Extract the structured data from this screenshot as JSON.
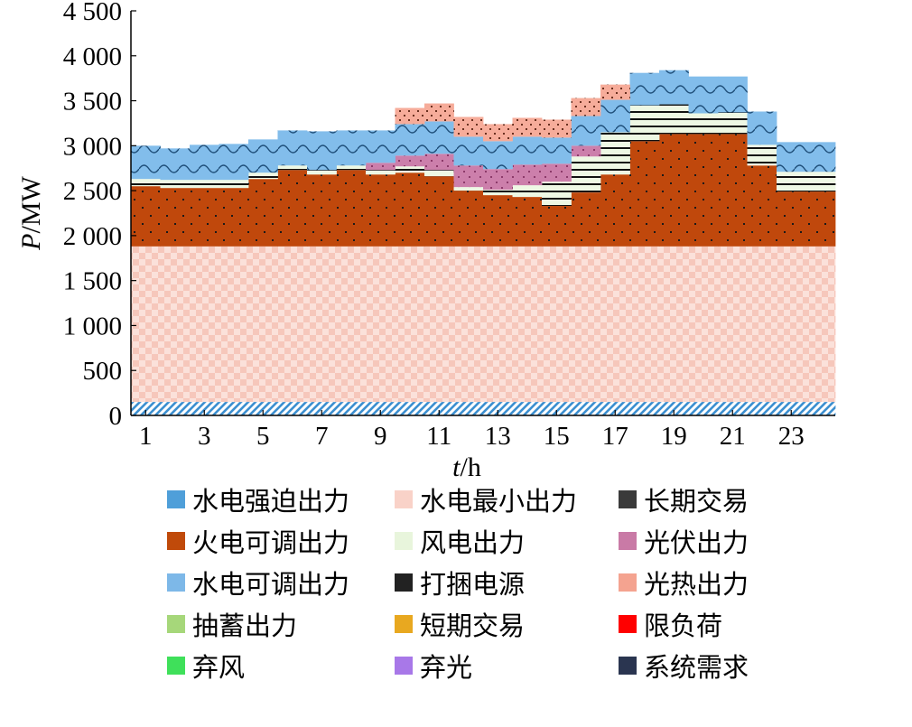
{
  "chart_data": {
    "type": "area",
    "stacked": true,
    "step": true,
    "xlabel": "t/h",
    "ylabel": "P/MW",
    "ylim": [
      0,
      4500
    ],
    "yticks": [
      0,
      500,
      1000,
      1500,
      2000,
      2500,
      3000,
      3500,
      4000,
      4500
    ],
    "ytick_labels": [
      "0",
      "500",
      "1 000",
      "1 500",
      "2 000",
      "2 500",
      "3 000",
      "3 500",
      "4 000",
      "4 500"
    ],
    "xlim": [
      0,
      24
    ],
    "xtick_values": [
      1,
      3,
      5,
      7,
      9,
      11,
      13,
      15,
      17,
      19,
      21,
      23
    ],
    "xtick_labels": [
      "1",
      "3",
      "5",
      "7",
      "9",
      "11",
      "13",
      "15",
      "17",
      "19",
      "21",
      "23"
    ],
    "hours": [
      1,
      2,
      3,
      4,
      5,
      6,
      7,
      8,
      9,
      10,
      11,
      12,
      13,
      14,
      15,
      16,
      17,
      18,
      19,
      20,
      21,
      22,
      23,
      24
    ],
    "series": [
      {
        "name": "水电强迫出力",
        "color": "#4f9fd9",
        "pattern": "hatch-blue",
        "values": [
          150,
          150,
          150,
          150,
          150,
          150,
          150,
          150,
          150,
          150,
          150,
          150,
          150,
          150,
          150,
          150,
          150,
          150,
          150,
          150,
          150,
          150,
          150,
          150
        ]
      },
      {
        "name": "水电最小出力",
        "color": "#f9d2c8",
        "pattern": "check-pink",
        "values": [
          1730,
          1730,
          1730,
          1730,
          1730,
          1730,
          1730,
          1730,
          1730,
          1730,
          1730,
          1730,
          1730,
          1730,
          1730,
          1730,
          1730,
          1730,
          1730,
          1730,
          1730,
          1730,
          1730,
          1730
        ]
      },
      {
        "name": "火电可调出力",
        "color": "#c04a0a",
        "pattern": "dots-orange",
        "values": [
          670,
          650,
          650,
          650,
          750,
          850,
          800,
          850,
          800,
          820,
          780,
          620,
          570,
          550,
          450,
          600,
          800,
          1170,
          1250,
          1250,
          1250,
          900,
          610,
          610
        ]
      },
      {
        "name": "风电出力",
        "color": "#e8f5dc",
        "pattern": "lines-green",
        "values": [
          80,
          90,
          90,
          90,
          70,
          50,
          50,
          50,
          50,
          70,
          70,
          40,
          60,
          130,
          270,
          400,
          470,
          400,
          330,
          230,
          240,
          230,
          220,
          220
        ]
      },
      {
        "name": "光伏出力",
        "color": "#c97aa6",
        "pattern": "dots-pink",
        "values": [
          0,
          0,
          0,
          0,
          0,
          0,
          0,
          0,
          80,
          120,
          180,
          240,
          230,
          230,
          200,
          120,
          0,
          0,
          0,
          0,
          0,
          0,
          0,
          0
        ]
      },
      {
        "name": "水电可调出力",
        "color": "#7db8e8",
        "pattern": "wave-blue",
        "values": [
          370,
          350,
          390,
          400,
          370,
          390,
          430,
          390,
          360,
          350,
          360,
          320,
          310,
          310,
          290,
          330,
          360,
          360,
          380,
          410,
          400,
          370,
          330,
          330
        ]
      },
      {
        "name": "光热出力",
        "color": "#f4a390",
        "pattern": "dots-salmon",
        "values": [
          0,
          0,
          0,
          0,
          0,
          0,
          0,
          0,
          0,
          180,
          200,
          220,
          190,
          210,
          200,
          200,
          170,
          0,
          0,
          0,
          0,
          0,
          0,
          0
        ]
      }
    ]
  },
  "legend": {
    "items": [
      {
        "label": "水电强迫出力",
        "color": "#4f9fd9"
      },
      {
        "label": "水电最小出力",
        "color": "#f9d2c8"
      },
      {
        "label": "长期交易",
        "color": "#3a3a3a"
      },
      {
        "label": "火电可调出力",
        "color": "#c04a0a"
      },
      {
        "label": "风电出力",
        "color": "#e8f5dc"
      },
      {
        "label": "光伏出力",
        "color": "#c97aa6"
      },
      {
        "label": "水电可调出力",
        "color": "#7db8e8"
      },
      {
        "label": "打捆电源",
        "color": "#222222"
      },
      {
        "label": "光热出力",
        "color": "#f4a390"
      },
      {
        "label": "抽蓄出力",
        "color": "#a6d77a"
      },
      {
        "label": "短期交易",
        "color": "#e8a820"
      },
      {
        "label": "限负荷",
        "color": "#ff0000"
      },
      {
        "label": "弃风",
        "color": "#3fe05a"
      },
      {
        "label": "弃光",
        "color": "#a878e8"
      },
      {
        "label": "系统需求",
        "color": "#2a3550"
      }
    ]
  }
}
